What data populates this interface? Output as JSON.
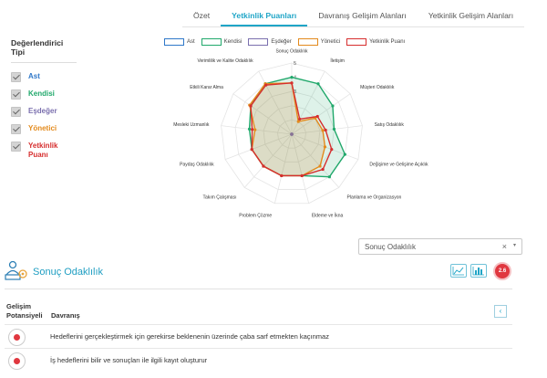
{
  "tabs": [
    {
      "label": "Özet"
    },
    {
      "label": "Yetkinlik Puanları"
    },
    {
      "label": "Davranış Gelişim Alanları"
    },
    {
      "label": "Yetkinlik Gelişim Alanları"
    }
  ],
  "filter": {
    "title": "Değerlendirici Tipi",
    "items": [
      {
        "label": "Ast",
        "color": "#2f78c9"
      },
      {
        "label": "Kendisi",
        "color": "#20a86b"
      },
      {
        "label": "Eşdeğer",
        "color": "#7a6fae"
      },
      {
        "label": "Yönetici",
        "color": "#e38a1c"
      },
      {
        "label": "Yetkinlik Puanı",
        "color": "#d62e2e"
      }
    ]
  },
  "chart_data": {
    "type": "radar",
    "categories": [
      "Sonuç Odaklılık",
      "İletişim",
      "Müşteri Odaklılık",
      "Satış Odaklılık",
      "Değişime ve Gelişime Açıklık",
      "Planlama ve Organizasyon",
      "Eldeme ve İkna",
      "Problem Çözme",
      "Takım Çalışması",
      "Paydaş Odaklılık",
      "Mesleki Uzmanlık",
      "Etkili Karar Alma",
      "Verimlilik ve Kalite Odaklılık"
    ],
    "rlim": [
      0,
      5
    ],
    "ticks": [
      "3",
      "4",
      "5"
    ],
    "series": [
      {
        "name": "Ast",
        "color": "#2f78c9",
        "values": [
          0,
          0,
          0,
          0,
          0,
          0,
          0,
          0,
          0,
          0,
          0,
          0,
          0
        ]
      },
      {
        "name": "Kendisi",
        "color": "#20a86b",
        "values": [
          4,
          4,
          3.5,
          3,
          4,
          4,
          3,
          3,
          3,
          3,
          3,
          3.5,
          4
        ]
      },
      {
        "name": "Eşdeğer",
        "color": "#7a6fae",
        "values": [
          0,
          0,
          0,
          0,
          0,
          0,
          0,
          0,
          0,
          0,
          0,
          0,
          0
        ]
      },
      {
        "name": "Yönetici",
        "color": "#e38a1c",
        "values": [
          3.6,
          1,
          2,
          2.2,
          2.5,
          3,
          3,
          3,
          3,
          3,
          2.6,
          3.6,
          4
        ]
      },
      {
        "name": "Yetkinlik Puanı",
        "color": "#d62e2e",
        "values": [
          3.6,
          1.2,
          2.2,
          2.4,
          3,
          3.3,
          3,
          3,
          3,
          3,
          2.8,
          3.5,
          3.9
        ]
      }
    ]
  },
  "dropdown": {
    "value": "Sonuç Odaklılık",
    "clear": "×",
    "caret": "▾"
  },
  "section": {
    "title": "Sonuç Odaklılık",
    "score": "2.6",
    "buttons": [
      {
        "icon": "line-chart-icon"
      },
      {
        "icon": "bar-chart-icon"
      }
    ]
  },
  "table": {
    "col1_line1": "Gelişim",
    "col1_line2": "Potansiyeli",
    "col2": "Davranış",
    "nav": "‹",
    "rows": [
      {
        "text": "Hedeflerini gerçekleştirmek için gerekirse beklenenin üzerinde çaba sarf etmekten kaçınmaz"
      },
      {
        "text": "İş hedeflerini bilir ve sonuçları ile ilgili kayıt oluşturur"
      }
    ]
  }
}
